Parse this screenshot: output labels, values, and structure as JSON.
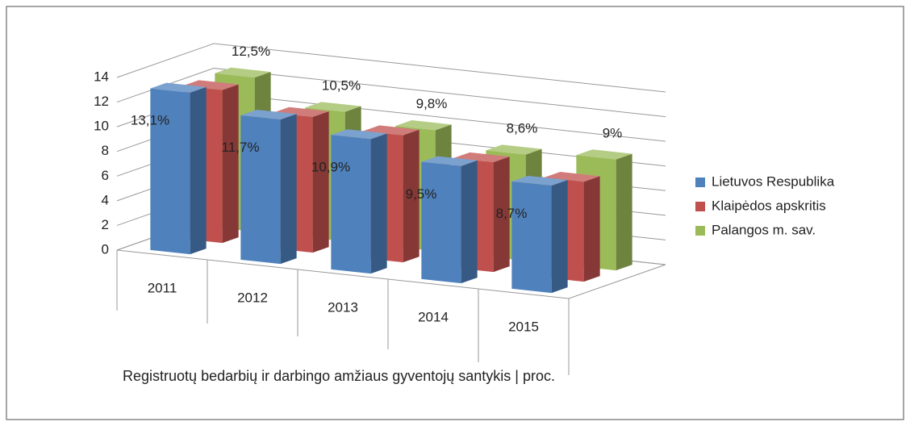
{
  "chart_data": {
    "type": "bar3d",
    "x_label": "Registruotų bedarbių ir darbingo amžiaus gyventojų santykis | proc.",
    "categories": [
      "2011",
      "2012",
      "2013",
      "2014",
      "2015"
    ],
    "series": [
      {
        "name": "Lietuvos Respublika",
        "color": "#4f81bd",
        "values": [
          13.1,
          11.7,
          10.9,
          9.5,
          8.7
        ],
        "value_labels": [
          "13,1%",
          "11,7%",
          "10,9%",
          "9,5%",
          "8,7%"
        ]
      },
      {
        "name": "Klaipėdos apskritis",
        "color": "#c0504d",
        "values": [
          12.4,
          11.0,
          10.3,
          8.9,
          8.1
        ]
      },
      {
        "name": "Palangos m. sav.",
        "color": "#9bbb59",
        "values": [
          12.5,
          10.5,
          9.8,
          8.6,
          9
        ],
        "value_labels": [
          "12,5%",
          "10,5%",
          "9,8%",
          "8,6%",
          "9%"
        ]
      }
    ],
    "ylim": [
      0,
      14
    ],
    "yticks": [
      0,
      2,
      4,
      6,
      8,
      10,
      12,
      14
    ],
    "grid": true,
    "legend": "right"
  }
}
